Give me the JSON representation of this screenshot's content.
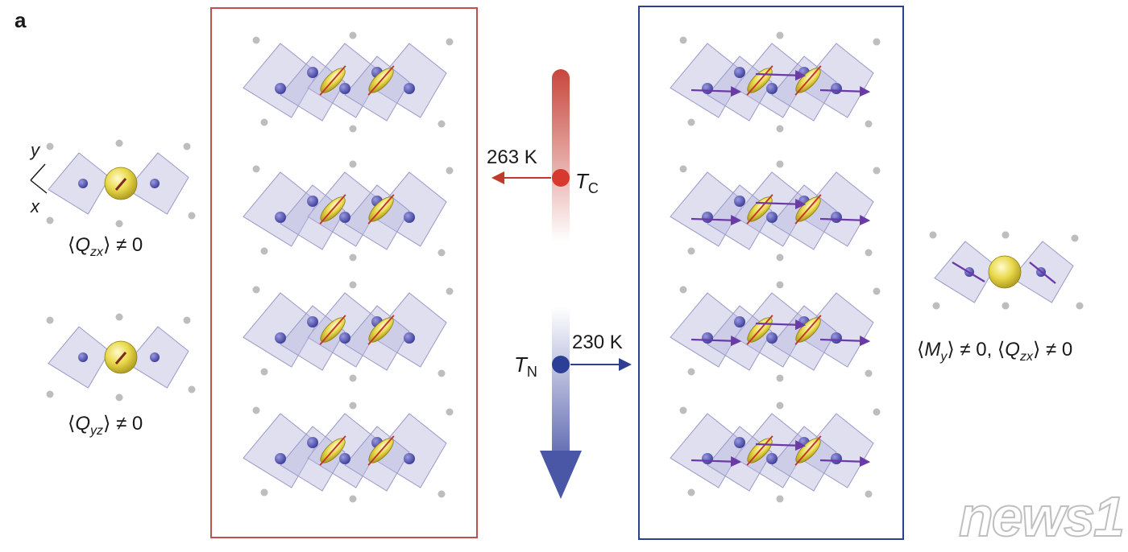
{
  "figure": {
    "panel_label": "a",
    "left_structures": [
      {
        "formula": "⟨Q_zx⟩ ≠ 0"
      },
      {
        "formula": "⟨Q_yz⟩ ≠ 0"
      }
    ],
    "axes": {
      "y": "y",
      "x": "x"
    },
    "temperature_bar": {
      "tc_value": "263 K",
      "tc_symbol": "T",
      "tc_sub": "C",
      "tn_value": "230 K",
      "tn_symbol": "T",
      "tn_sub": "N",
      "colors": {
        "hot": "#c0392b",
        "cold": "#3b4a9e"
      }
    },
    "right_structure": {
      "formula": "⟨M_y⟩ ≠ 0, ⟨Q_zx⟩ ≠ 0"
    },
    "watermark": "news1",
    "colors": {
      "red_box": "#c0504d",
      "blue_box": "#2e3f8f",
      "octahedron": "#b8b8dd",
      "atom": "#5a5ab8",
      "orbital": "#e8d84a"
    }
  }
}
